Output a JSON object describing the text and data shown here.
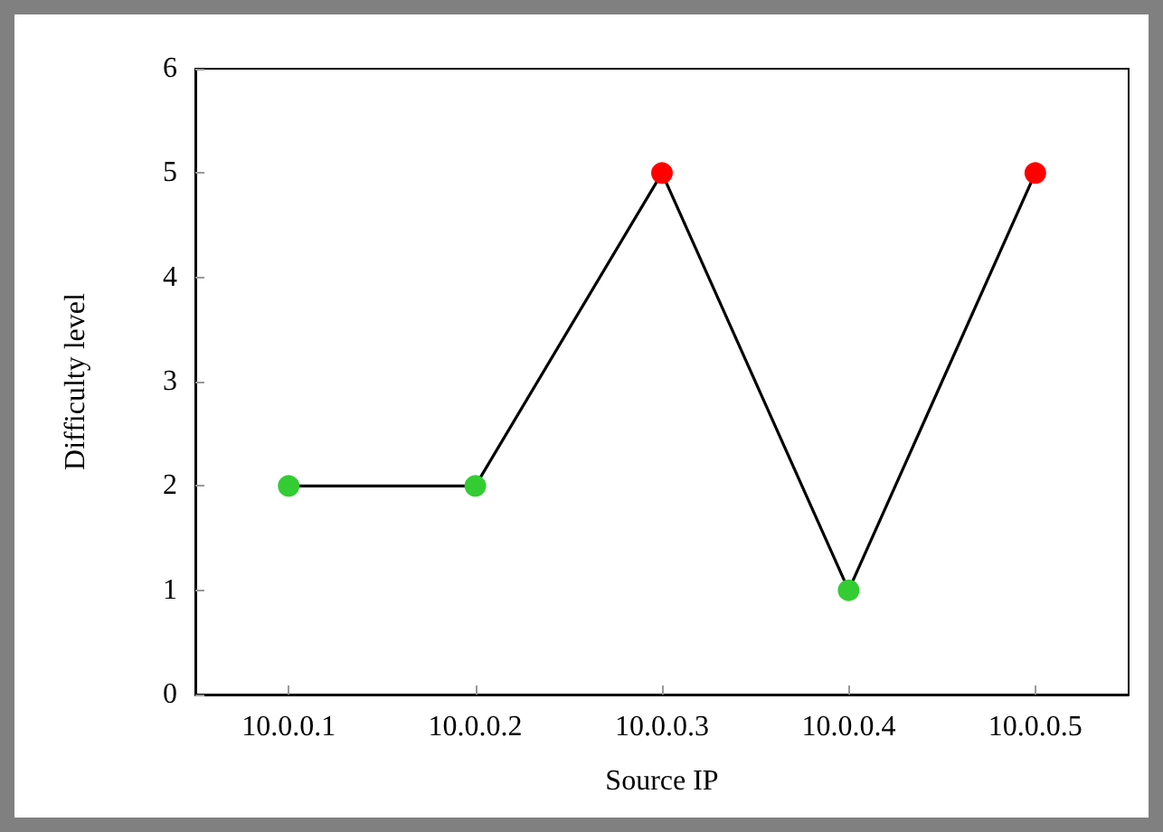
{
  "chart_data": {
    "type": "line",
    "xlabel": "Source IP",
    "ylabel": "Difficulty level",
    "categories": [
      "10.0.0.1",
      "10.0.0.2",
      "10.0.0.3",
      "10.0.0.4",
      "10.0.0.5"
    ],
    "series": [
      {
        "color": "#000000",
        "colors": [
          "#33cc33",
          "#33cc33",
          "#ff0000",
          "#33cc33",
          "#ff0000"
        ],
        "values": [
          2,
          2,
          5,
          1,
          5
        ]
      }
    ],
    "ylim": [
      0,
      6
    ],
    "yticks": [
      0,
      1,
      2,
      3,
      4,
      5,
      6
    ],
    "grid": false,
    "marker": "circle",
    "line_style": "solid"
  }
}
